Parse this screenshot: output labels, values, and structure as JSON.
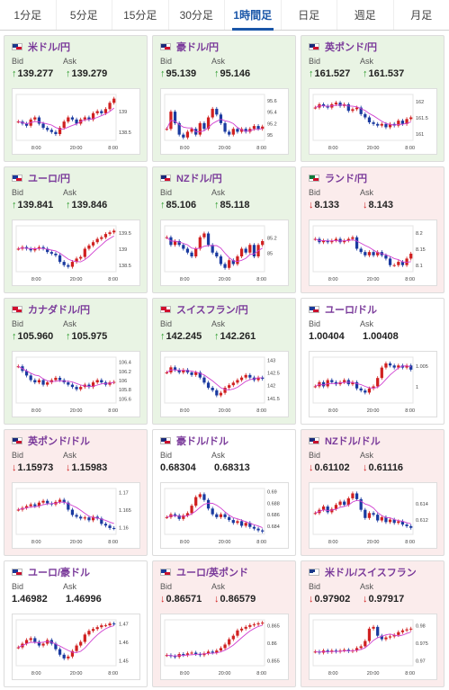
{
  "tabs": [
    {
      "label": "1分足"
    },
    {
      "label": "5分足"
    },
    {
      "label": "15分足"
    },
    {
      "label": "30分足"
    },
    {
      "label": "1時間足",
      "active": true
    },
    {
      "label": "日足"
    },
    {
      "label": "週足"
    },
    {
      "label": "月足"
    }
  ],
  "labels": {
    "bid": "Bid",
    "ask": "Ask"
  },
  "colors": {
    "up_bg": "#e9f4e4",
    "down_bg": "#fbecec",
    "pair_name": "#7a3a9a",
    "up_arrow": "#2a9a2a",
    "down_arrow": "#d02020",
    "candle_up": "#d02020",
    "candle_down": "#1a3aa0",
    "ma_line": "#d040d0",
    "ma2_line": "#20b0b0",
    "active_tab": "#1a56a8"
  },
  "arrows": {
    "up": "↑",
    "down": "↓"
  },
  "cards": [
    {
      "name": "米ドル/円",
      "flag": "us-jp-flag-icon",
      "dir": "up",
      "bid": "139.277",
      "ask": "139.279",
      "chart_data": {
        "type": "candlestick",
        "x_ticks": [
          "8:00",
          "20:00",
          "8:00"
        ],
        "y_ticks": [
          "139",
          "138.5"
        ],
        "ylim": [
          138.3,
          139.4
        ],
        "trend": [
          138.75,
          138.7,
          138.65,
          138.8,
          138.85,
          138.7,
          138.6,
          138.55,
          138.5,
          138.45,
          138.6,
          138.75,
          138.85,
          138.8,
          138.7,
          138.8,
          138.85,
          138.8,
          138.95,
          139.0,
          138.95,
          139.05,
          139.2,
          139.3
        ]
      }
    },
    {
      "name": "豪ドル/円",
      "flag": "au-jp-flag-icon",
      "dir": "up",
      "bid": "95.139",
      "ask": "95.146",
      "chart_data": {
        "type": "candlestick",
        "x_ticks": [
          "8:00",
          "20:00",
          "8:00"
        ],
        "y_ticks": [
          "95.6",
          "95.4",
          "95.2",
          "95"
        ],
        "ylim": [
          94.9,
          95.7
        ],
        "trend": [
          95.1,
          95.4,
          95.2,
          95.0,
          94.95,
          95.05,
          95.1,
          95.0,
          95.2,
          95.1,
          95.3,
          95.45,
          95.35,
          95.2,
          95.05,
          95.0,
          95.1,
          95.05,
          95.1,
          95.05,
          95.1,
          95.15,
          95.1,
          95.14
        ]
      }
    },
    {
      "name": "英ポンド/円",
      "flag": "gb-jp-flag-icon",
      "dir": "up",
      "bid": "161.527",
      "ask": "161.537",
      "chart_data": {
        "type": "candlestick",
        "x_ticks": [
          "8:00",
          "20:00",
          "8:00"
        ],
        "y_ticks": [
          "162",
          "161.5",
          "161"
        ],
        "ylim": [
          160.8,
          162.2
        ],
        "trend": [
          161.8,
          161.9,
          161.85,
          161.8,
          161.9,
          161.95,
          161.85,
          161.9,
          161.7,
          161.75,
          161.8,
          161.6,
          161.5,
          161.35,
          161.3,
          161.25,
          161.3,
          161.2,
          161.3,
          161.25,
          161.4,
          161.3,
          161.45,
          161.5
        ]
      }
    },
    {
      "name": "ユーロ/円",
      "flag": "eu-jp-flag-icon",
      "dir": "up",
      "bid": "139.841",
      "ask": "139.846",
      "chart_data": {
        "type": "candlestick",
        "x_ticks": [
          "8:00",
          "20:00",
          "8:00"
        ],
        "y_ticks": [
          "139.5",
          "139",
          "138.5"
        ],
        "ylim": [
          138.3,
          139.7
        ],
        "trend": [
          139.0,
          139.05,
          139.0,
          138.95,
          139.0,
          139.05,
          139.0,
          138.9,
          138.85,
          138.8,
          138.6,
          138.5,
          138.45,
          138.6,
          138.7,
          138.75,
          139.0,
          139.1,
          139.2,
          139.3,
          139.35,
          139.45,
          139.5,
          139.55
        ]
      }
    },
    {
      "name": "NZドル/円",
      "flag": "nz-jp-flag-icon",
      "dir": "up",
      "bid": "85.106",
      "ask": "85.118",
      "chart_data": {
        "type": "candlestick",
        "x_ticks": [
          "8:00",
          "20:00",
          "8:00"
        ],
        "y_ticks": [
          "85.2",
          "85"
        ],
        "ylim": [
          84.75,
          85.35
        ],
        "trend": [
          85.2,
          85.1,
          85.15,
          85.1,
          85.05,
          85.0,
          84.95,
          85.05,
          85.2,
          85.25,
          85.1,
          85.0,
          84.95,
          84.85,
          84.8,
          84.9,
          84.85,
          84.95,
          85.05,
          85.0,
          85.1,
          84.95,
          85.1,
          85.15
        ]
      }
    },
    {
      "name": "ランド/円",
      "flag": "za-jp-flag-icon",
      "dir": "down",
      "bid": "8.133",
      "ask": "8.143",
      "chart_data": {
        "type": "candlestick",
        "x_ticks": [
          "8:00",
          "20:00",
          "8:00"
        ],
        "y_ticks": [
          "8.2",
          "8.15",
          "8.1"
        ],
        "ylim": [
          8.08,
          8.22
        ],
        "trend": [
          8.18,
          8.17,
          8.175,
          8.17,
          8.175,
          8.18,
          8.17,
          8.175,
          8.18,
          8.185,
          8.15,
          8.14,
          8.13,
          8.14,
          8.13,
          8.14,
          8.13,
          8.12,
          8.1,
          8.1,
          8.11,
          8.1,
          8.12,
          8.135
        ]
      }
    },
    {
      "name": "カナダドル/円",
      "flag": "ca-jp-flag-icon",
      "dir": "up",
      "bid": "105.960",
      "ask": "105.975",
      "chart_data": {
        "type": "candlestick",
        "x_ticks": [
          "8:00",
          "20:00",
          "8:00"
        ],
        "y_ticks": [
          "106.4",
          "106.2",
          "106",
          "105.8",
          "105.6"
        ],
        "ylim": [
          105.5,
          106.5
        ],
        "trend": [
          106.3,
          106.2,
          106.1,
          106.0,
          105.95,
          106.0,
          105.9,
          105.95,
          106.0,
          106.05,
          106.0,
          105.95,
          105.9,
          105.85,
          105.8,
          105.85,
          105.9,
          105.85,
          105.95,
          106.0,
          105.95,
          105.9,
          105.95,
          105.96
        ]
      }
    },
    {
      "name": "スイスフラン/円",
      "flag": "ch-jp-flag-icon",
      "dir": "up",
      "bid": "142.245",
      "ask": "142.261",
      "chart_data": {
        "type": "candlestick",
        "x_ticks": [
          "8:00",
          "20:00",
          "8:00"
        ],
        "y_ticks": [
          "143",
          "142.5",
          "142",
          "141.5"
        ],
        "ylim": [
          141.3,
          143.1
        ],
        "trend": [
          142.5,
          142.7,
          142.6,
          142.5,
          142.6,
          142.5,
          142.4,
          142.5,
          142.3,
          142.1,
          141.9,
          141.8,
          141.6,
          141.7,
          141.9,
          142.0,
          142.1,
          142.2,
          142.3,
          142.4,
          142.3,
          142.2,
          142.3,
          142.25
        ]
      }
    },
    {
      "name": "ユーロ/ドル",
      "flag": "eu-us-flag-icon",
      "dir": "flat",
      "bid": "1.00404",
      "ask": "1.00408",
      "chart_data": {
        "type": "candlestick",
        "x_ticks": [
          "8:00",
          "20:00",
          "8:00"
        ],
        "y_ticks": [
          "1.005",
          "1"
        ],
        "ylim": [
          0.996,
          1.007
        ],
        "trend": [
          1.0,
          1.001,
          1.0,
          1.0015,
          1.001,
          1.0005,
          1.001,
          1.0015,
          1.0005,
          1.001,
          0.9995,
          0.999,
          0.9985,
          0.9995,
          1.0,
          1.002,
          1.0045,
          1.0055,
          1.005,
          1.0045,
          1.005,
          1.0045,
          1.005,
          1.004
        ]
      }
    },
    {
      "name": "英ポンド/ドル",
      "flag": "gb-us-flag-icon",
      "dir": "down",
      "bid": "1.15973",
      "ask": "1.15983",
      "chart_data": {
        "type": "candlestick",
        "x_ticks": [
          "8:00",
          "20:00",
          "8:00"
        ],
        "y_ticks": [
          "1.17",
          "1.165",
          "1.16"
        ],
        "ylim": [
          1.158,
          1.171
        ],
        "trend": [
          1.165,
          1.1655,
          1.166,
          1.1665,
          1.166,
          1.167,
          1.1675,
          1.1668,
          1.1665,
          1.1672,
          1.1678,
          1.167,
          1.165,
          1.1635,
          1.163,
          1.1625,
          1.1628,
          1.162,
          1.163,
          1.1625,
          1.161,
          1.1605,
          1.1598,
          1.1597
        ]
      }
    },
    {
      "name": "豪ドル/ドル",
      "flag": "au-us-flag-icon",
      "dir": "flat",
      "bid": "0.68304",
      "ask": "0.68313",
      "chart_data": {
        "type": "candlestick",
        "x_ticks": [
          "8:00",
          "20:00",
          "8:00"
        ],
        "y_ticks": [
          "0.69",
          "0.688",
          "0.686",
          "0.684"
        ],
        "ylim": [
          0.6825,
          0.6905
        ],
        "trend": [
          0.6855,
          0.686,
          0.6858,
          0.6852,
          0.6858,
          0.6862,
          0.6875,
          0.689,
          0.6895,
          0.6885,
          0.687,
          0.686,
          0.6855,
          0.686,
          0.6855,
          0.685,
          0.6845,
          0.6848,
          0.684,
          0.6845,
          0.6838,
          0.6835,
          0.6832,
          0.683
        ]
      }
    },
    {
      "name": "NZドル/ドル",
      "flag": "nz-us-flag-icon",
      "dir": "down",
      "bid": "0.61102",
      "ask": "0.61116",
      "chart_data": {
        "type": "candlestick",
        "x_ticks": [
          "8:00",
          "20:00",
          "8:00"
        ],
        "y_ticks": [
          "0.614",
          "0.612"
        ],
        "ylim": [
          0.6102,
          0.6158
        ],
        "trend": [
          0.6128,
          0.6132,
          0.6136,
          0.6129,
          0.6133,
          0.6138,
          0.6142,
          0.6138,
          0.6146,
          0.6152,
          0.6145,
          0.6132,
          0.6122,
          0.6128,
          0.6126,
          0.6119,
          0.6123,
          0.6117,
          0.612,
          0.6116,
          0.6118,
          0.6114,
          0.6112,
          0.611
        ]
      }
    },
    {
      "name": "ユーロ/豪ドル",
      "flag": "eu-au-flag-icon",
      "dir": "flat",
      "bid": "1.46982",
      "ask": "1.46996",
      "chart_data": {
        "type": "candlestick",
        "x_ticks": [
          "8:00",
          "20:00",
          "8:00"
        ],
        "y_ticks": [
          "1.47",
          "1.46",
          "1.45"
        ],
        "ylim": [
          1.447,
          1.472
        ],
        "trend": [
          1.457,
          1.459,
          1.461,
          1.462,
          1.46,
          1.458,
          1.459,
          1.461,
          1.459,
          1.456,
          1.453,
          1.451,
          1.452,
          1.455,
          1.458,
          1.46,
          1.464,
          1.466,
          1.467,
          1.468,
          1.469,
          1.469,
          1.47,
          1.4698
        ]
      }
    },
    {
      "name": "ユーロ/英ポンド",
      "flag": "eu-gb-flag-icon",
      "dir": "down",
      "bid": "0.86571",
      "ask": "0.86579",
      "chart_data": {
        "type": "candlestick",
        "x_ticks": [
          "8:00",
          "20:00",
          "8:00"
        ],
        "y_ticks": [
          "0.865",
          "0.86",
          "0.855"
        ],
        "ylim": [
          0.8535,
          0.8665
        ],
        "trend": [
          0.8565,
          0.8562,
          0.856,
          0.8568,
          0.8565,
          0.857,
          0.8572,
          0.8568,
          0.8565,
          0.857,
          0.8575,
          0.8572,
          0.8578,
          0.8585,
          0.8595,
          0.861,
          0.862,
          0.8635,
          0.864,
          0.8645,
          0.865,
          0.8652,
          0.8655,
          0.8657
        ]
      }
    },
    {
      "name": "米ドル/スイスフラン",
      "flag": "us-ch-flag-icon",
      "dir": "down",
      "bid": "0.97902",
      "ask": "0.97917",
      "chart_data": {
        "type": "candlestick",
        "x_ticks": [
          "8:00",
          "20:00",
          "8:00"
        ],
        "y_ticks": [
          "0.98",
          "0.975",
          "0.97"
        ],
        "ylim": [
          0.9685,
          0.9815
        ],
        "trend": [
          0.9725,
          0.9722,
          0.9728,
          0.9724,
          0.9728,
          0.9725,
          0.9728,
          0.973,
          0.9726,
          0.9728,
          0.9735,
          0.974,
          0.9755,
          0.979,
          0.9795,
          0.977,
          0.976,
          0.9765,
          0.9768,
          0.9772,
          0.978,
          0.9785,
          0.9788,
          0.979
        ]
      }
    }
  ]
}
